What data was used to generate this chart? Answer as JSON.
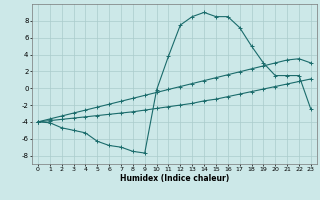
{
  "xlabel": "Humidex (Indice chaleur)",
  "bg_color": "#cce8e8",
  "line_color": "#1a6b6b",
  "grid_color": "#aacccc",
  "xlim": [
    -0.5,
    23.5
  ],
  "ylim": [
    -9,
    10
  ],
  "xticks": [
    0,
    1,
    2,
    3,
    4,
    5,
    6,
    7,
    8,
    9,
    10,
    11,
    12,
    13,
    14,
    15,
    16,
    17,
    18,
    19,
    20,
    21,
    22,
    23
  ],
  "yticks": [
    -8,
    -6,
    -4,
    -2,
    0,
    2,
    4,
    6,
    8
  ],
  "line1_x": [
    0,
    1,
    2,
    3,
    4,
    5,
    6,
    7,
    8,
    9,
    10,
    11,
    12,
    13,
    14,
    15,
    16,
    17,
    18,
    19,
    20,
    21,
    22,
    23
  ],
  "line1_y": [
    -4.0,
    -4.1,
    -4.7,
    -5.0,
    -5.3,
    -6.3,
    -6.8,
    -7.0,
    -7.5,
    -7.7,
    -0.2,
    3.8,
    7.5,
    8.5,
    9.0,
    8.5,
    8.5,
    7.2,
    5.0,
    3.0,
    1.5,
    1.5,
    1.5,
    -2.5
  ],
  "line2_x": [
    0,
    1,
    2,
    3,
    4,
    5,
    6,
    7,
    8,
    9,
    10,
    11,
    12,
    13,
    14,
    15,
    16,
    17,
    18,
    19,
    20,
    21,
    22,
    23
  ],
  "line2_y": [
    -4.0,
    -3.85,
    -3.7,
    -3.55,
    -3.4,
    -3.25,
    -3.1,
    -2.95,
    -2.8,
    -2.6,
    -2.4,
    -2.2,
    -2.0,
    -1.8,
    -1.5,
    -1.3,
    -1.0,
    -0.7,
    -0.4,
    -0.1,
    0.2,
    0.5,
    0.8,
    1.1
  ],
  "line3_x": [
    0,
    1,
    2,
    3,
    4,
    5,
    6,
    7,
    8,
    9,
    10,
    11,
    12,
    13,
    14,
    15,
    16,
    17,
    18,
    19,
    20,
    21,
    22,
    23
  ],
  "line3_y": [
    -4.0,
    -3.65,
    -3.3,
    -2.95,
    -2.6,
    -2.25,
    -1.9,
    -1.55,
    -1.2,
    -0.85,
    -0.5,
    -0.15,
    0.2,
    0.55,
    0.9,
    1.25,
    1.6,
    1.95,
    2.3,
    2.65,
    3.0,
    3.35,
    3.5,
    3.0
  ]
}
